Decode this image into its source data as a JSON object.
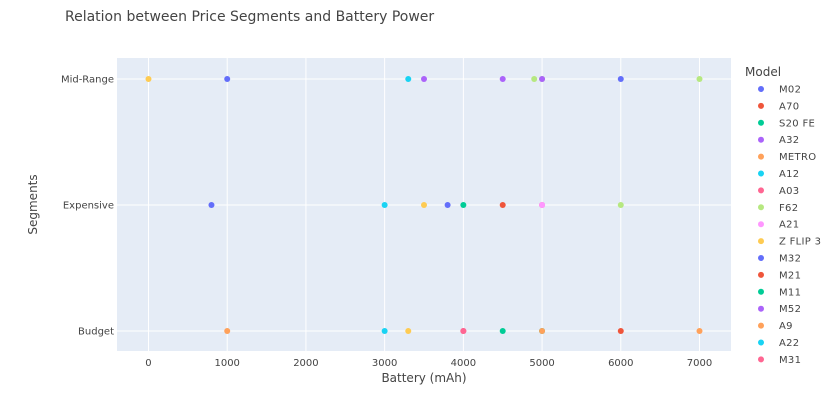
{
  "chart_data": {
    "type": "scatter",
    "title": "Relation between Price Segments and Battery Power",
    "xlabel": "Battery (mAh)",
    "ylabel": "Segments",
    "xlim": [
      -400,
      7400
    ],
    "x_ticks": [
      0,
      1000,
      2000,
      3000,
      4000,
      5000,
      6000,
      7000
    ],
    "categories": [
      "Budget",
      "Expensive",
      "Mid-Range"
    ],
    "legend_title": "Model",
    "legend_position": "right",
    "grid": true,
    "series": [
      {
        "name": "M02",
        "color": "#636efa",
        "points": [
          {
            "x": 1000,
            "y": "Mid-Range"
          },
          {
            "x": 6000,
            "y": "Mid-Range"
          }
        ]
      },
      {
        "name": "A70",
        "color": "#EF553B",
        "points": [
          {
            "x": 4500,
            "y": "Expensive"
          }
        ]
      },
      {
        "name": "S20 FE",
        "color": "#00cc96",
        "points": [
          {
            "x": 4000,
            "y": "Expensive"
          }
        ]
      },
      {
        "name": "A32",
        "color": "#ab63fa",
        "points": [
          {
            "x": 3500,
            "y": "Mid-Range"
          },
          {
            "x": 4500,
            "y": "Mid-Range"
          }
        ]
      },
      {
        "name": "METRO",
        "color": "#FFA15A",
        "points": [
          {
            "x": 1000,
            "y": "Budget"
          },
          {
            "x": 7000,
            "y": "Budget"
          }
        ]
      },
      {
        "name": "A12",
        "color": "#19d3f3",
        "points": [
          {
            "x": 3000,
            "y": "Expensive"
          },
          {
            "x": 3000,
            "y": "Budget"
          }
        ]
      },
      {
        "name": "A03",
        "color": "#FF6692",
        "points": [
          {
            "x": 5000,
            "y": "Expensive"
          },
          {
            "x": 4000,
            "y": "Budget"
          }
        ]
      },
      {
        "name": "F62",
        "color": "#B6E880",
        "points": [
          {
            "x": 4900,
            "y": "Mid-Range"
          },
          {
            "x": 5000,
            "y": "Mid-Range"
          },
          {
            "x": 7000,
            "y": "Mid-Range"
          },
          {
            "x": 6000,
            "y": "Expensive"
          }
        ]
      },
      {
        "name": "A21",
        "color": "#FF97FF",
        "points": [
          {
            "x": 5000,
            "y": "Expensive"
          }
        ]
      },
      {
        "name": "Z FLIP 3",
        "color": "#FECB52",
        "points": [
          {
            "x": 0,
            "y": "Mid-Range"
          },
          {
            "x": 3500,
            "y": "Expensive"
          },
          {
            "x": 3300,
            "y": "Budget"
          }
        ]
      },
      {
        "name": "M32",
        "color": "#636efa",
        "points": [
          {
            "x": 800,
            "y": "Expensive"
          },
          {
            "x": 3800,
            "y": "Expensive"
          }
        ]
      },
      {
        "name": "M21",
        "color": "#EF553B",
        "points": [
          {
            "x": 6000,
            "y": "Budget"
          }
        ]
      },
      {
        "name": "M11",
        "color": "#00cc96",
        "points": [
          {
            "x": 4500,
            "y": "Budget"
          },
          {
            "x": 5000,
            "y": "Budget"
          }
        ]
      },
      {
        "name": "M52",
        "color": "#ab63fa",
        "points": [
          {
            "x": 5000,
            "y": "Mid-Range"
          }
        ]
      },
      {
        "name": "A9",
        "color": "#FFA15A",
        "points": [
          {
            "x": 5000,
            "y": "Budget"
          }
        ]
      },
      {
        "name": "A22",
        "color": "#19d3f3",
        "points": [
          {
            "x": 3300,
            "y": "Mid-Range"
          }
        ]
      },
      {
        "name": "M31",
        "color": "#FF6692",
        "points": [
          {
            "x": 4000,
            "y": "Budget"
          }
        ]
      }
    ]
  },
  "colors": {
    "plot_background": "#e5ecf6",
    "grid": "#ffffff",
    "text": "#444444"
  }
}
